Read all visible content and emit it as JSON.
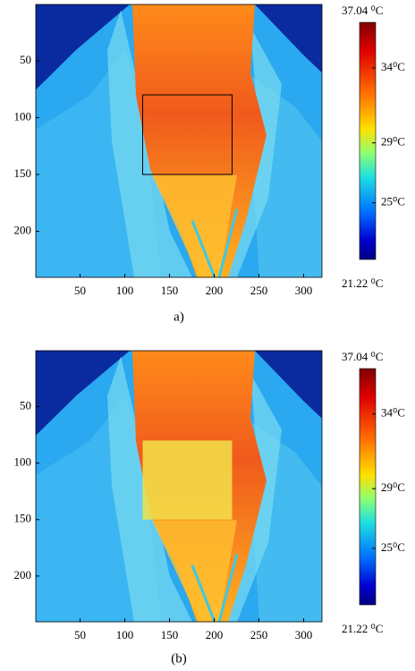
{
  "chart_data": [
    {
      "type": "heatmap",
      "caption": "a)",
      "xlim": [
        0.5,
        320.5
      ],
      "ylim": [
        0.5,
        240.5
      ],
      "xticks": [
        50,
        100,
        150,
        200,
        250,
        300
      ],
      "yticks": [
        50,
        100,
        150,
        200
      ],
      "roi": {
        "x": [
          120,
          220
        ],
        "y": [
          80,
          150
        ],
        "color": "#000000"
      },
      "colorbar": {
        "lim": [
          21.22,
          37.04
        ],
        "ticks": [
          {
            "value": 37.04,
            "label": "37.04 ⁰C"
          },
          {
            "value": 34,
            "label": "34⁰C"
          },
          {
            "value": 29,
            "label": "29⁰C"
          },
          {
            "value": 25,
            "label": "25⁰C"
          },
          {
            "value": 21.22,
            "label": "21.22 ⁰C"
          }
        ]
      }
    },
    {
      "type": "heatmap",
      "caption": "(b)",
      "xlim": [
        0.5,
        320.5
      ],
      "ylim": [
        0.5,
        240.5
      ],
      "xticks": [
        50,
        100,
        150,
        200,
        250,
        300
      ],
      "yticks": [
        50,
        100,
        150,
        200
      ],
      "roi": {
        "x": [
          120,
          220
        ],
        "y": [
          80,
          150
        ],
        "color": "#f2e24a"
      },
      "colorbar": {
        "lim": [
          21.22,
          37.04
        ],
        "ticks": [
          {
            "value": 37.04,
            "label": "37.04 ⁰C"
          },
          {
            "value": 34,
            "label": "34⁰C"
          },
          {
            "value": 29,
            "label": "29⁰C"
          },
          {
            "value": 25,
            "label": "25⁰C"
          },
          {
            "value": 21.22,
            "label": "21.22 ⁰C"
          }
        ]
      }
    }
  ]
}
